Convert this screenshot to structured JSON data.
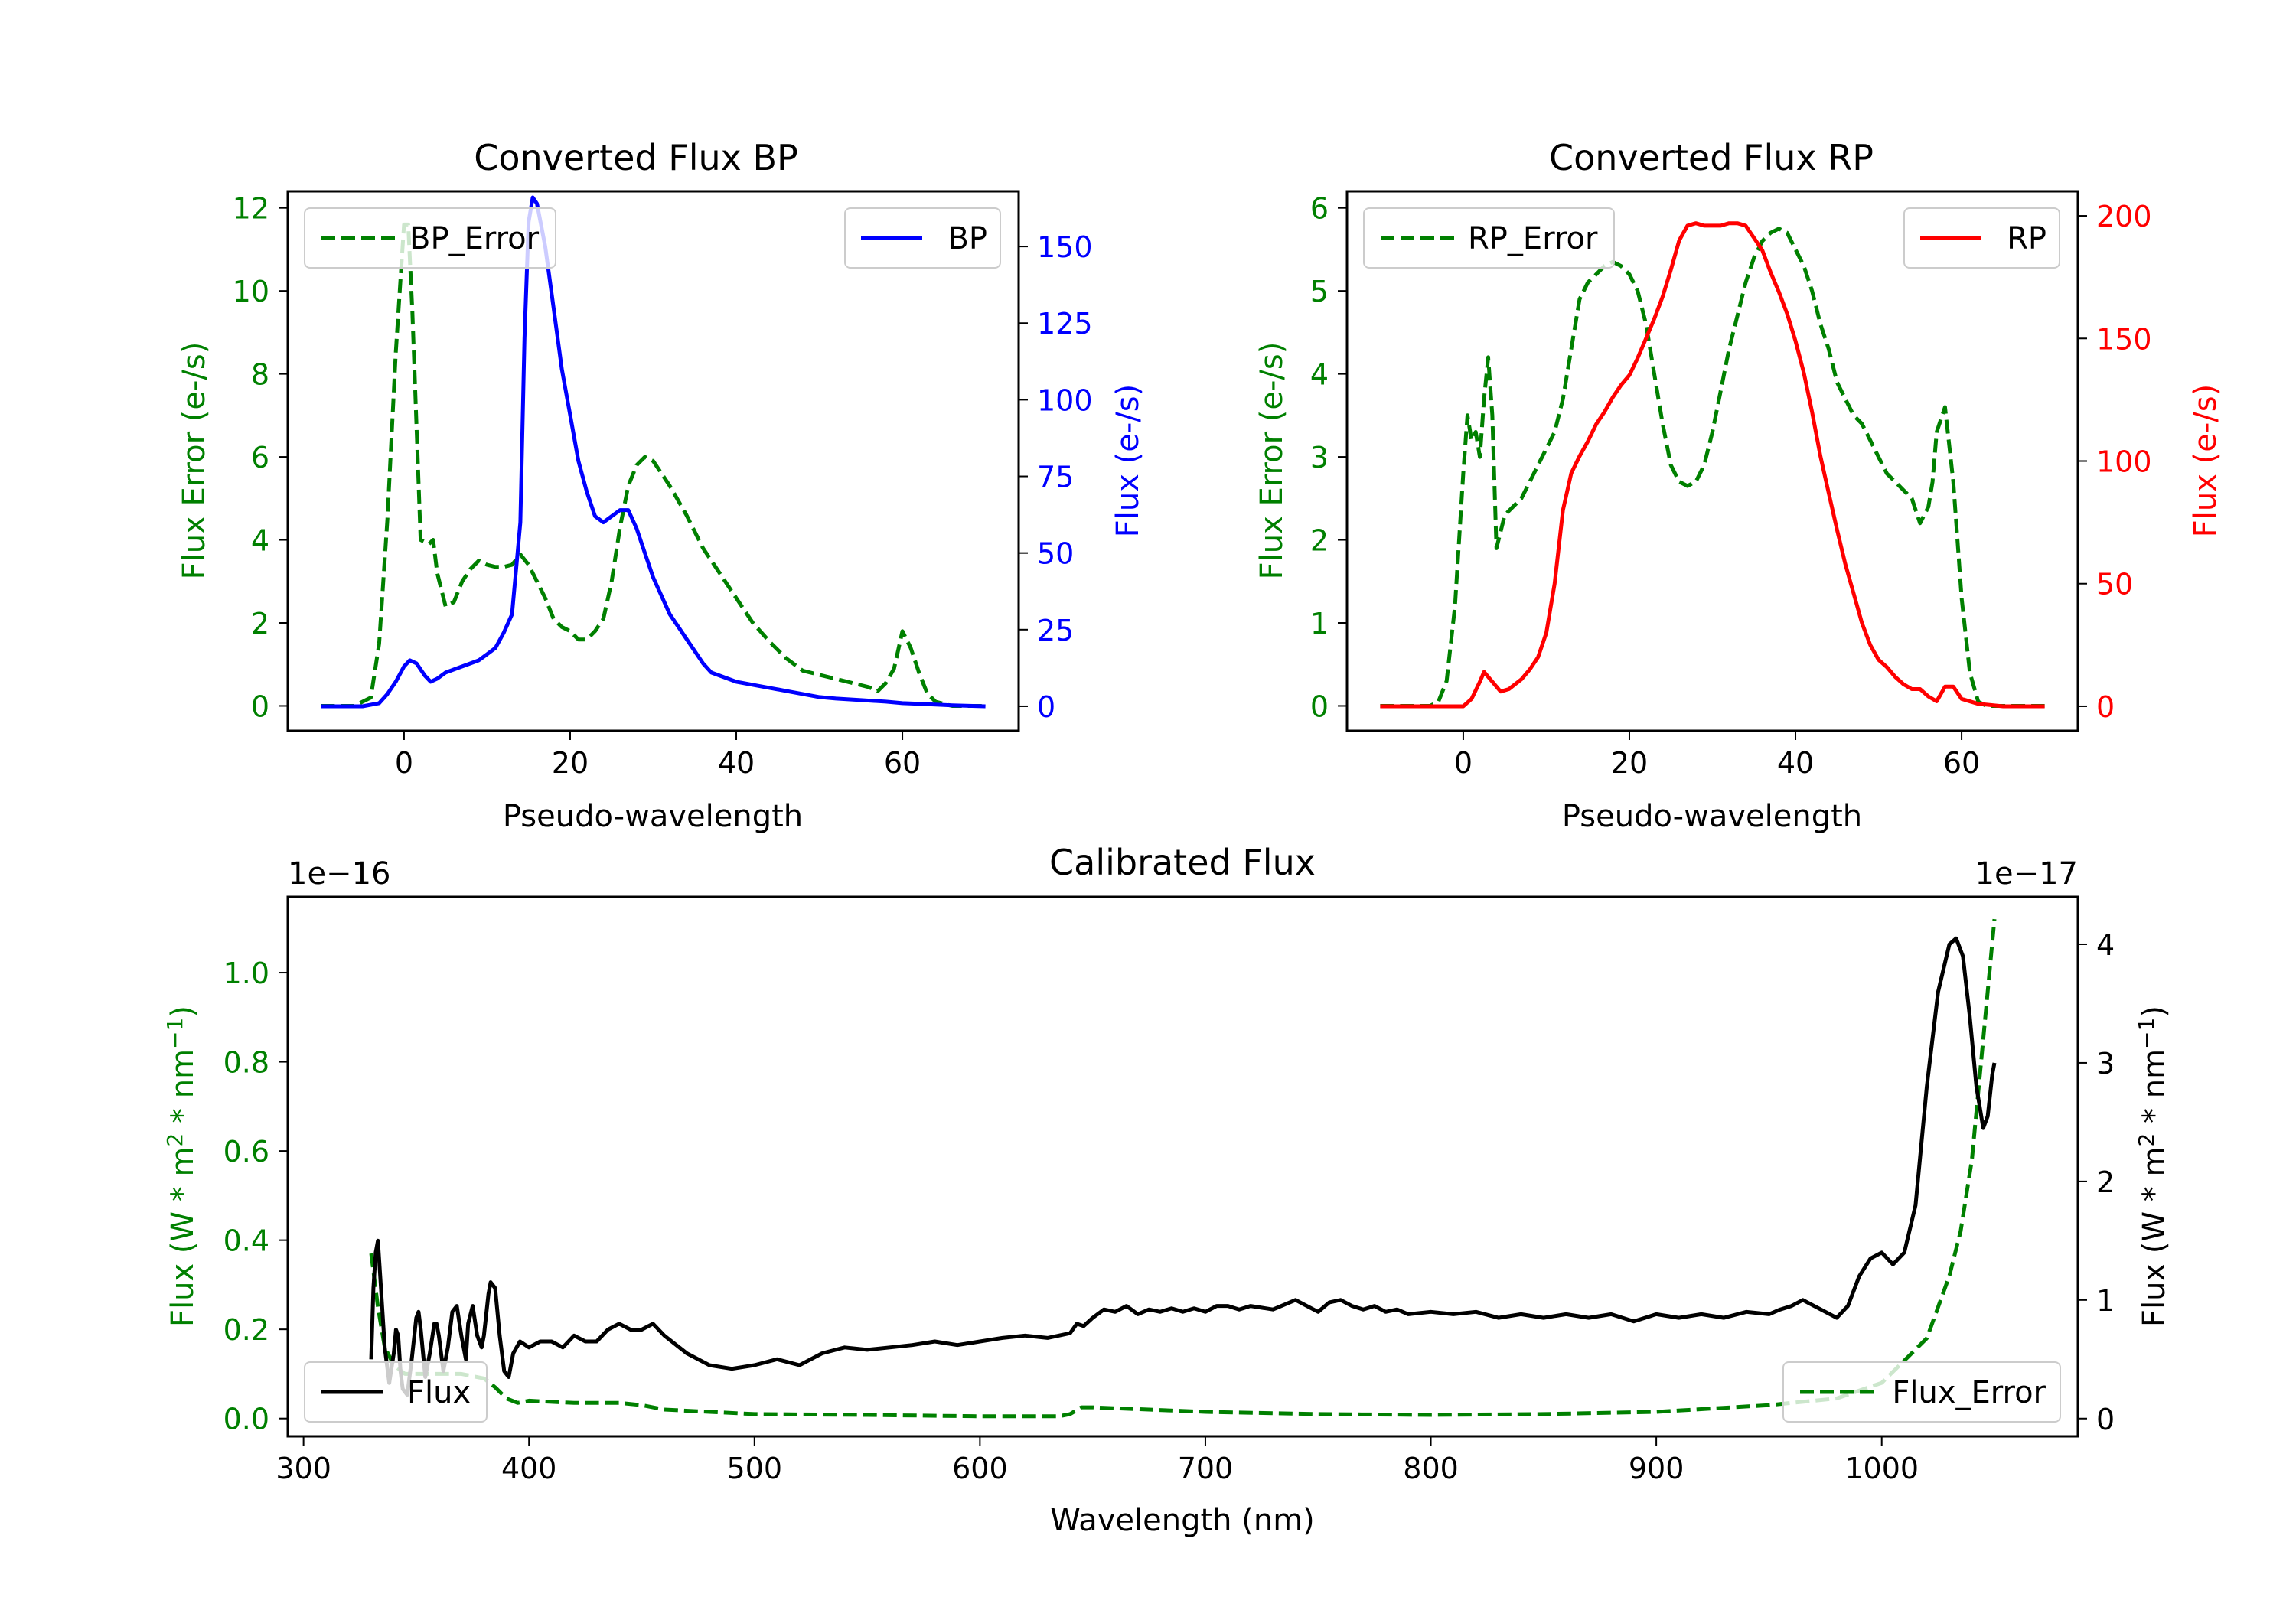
{
  "chart_data": [
    {
      "type": "line",
      "title": "Converted Flux BP",
      "xlabel": "Pseudo-wavelength",
      "xlim": [
        -14,
        74
      ],
      "x_ticks": [
        0,
        20,
        40,
        60
      ],
      "left_axis": {
        "label": "Flux Error (e-/s)",
        "color": "#008000",
        "ylim": [
          -0.6,
          12.4
        ],
        "ticks": [
          0,
          2,
          4,
          6,
          8,
          10,
          12
        ]
      },
      "right_axis": {
        "label": "Flux (e-/s)",
        "color": "#0000ff",
        "ylim": [
          -8,
          168
        ],
        "ticks": [
          0,
          25,
          50,
          75,
          100,
          125,
          150
        ]
      },
      "legend_left": {
        "position": "upper left",
        "label": "BP_Error"
      },
      "legend_right": {
        "position": "upper right",
        "label": "BP"
      },
      "series": [
        {
          "name": "BP_Error",
          "axis": "left",
          "color": "#008000",
          "style": "dashed",
          "x": [
            -10,
            -6,
            -4,
            -3,
            -2,
            -1,
            0,
            0.5,
            1,
            2,
            3,
            3.5,
            4,
            5,
            6,
            7,
            8,
            9,
            10,
            11,
            12,
            13,
            14,
            15,
            16,
            17,
            18,
            19,
            20,
            21,
            22,
            23,
            24,
            25,
            26,
            27,
            28,
            29,
            30,
            31,
            32,
            34,
            36,
            38,
            40,
            42,
            44,
            46,
            48,
            50,
            52,
            54,
            56,
            57,
            58,
            59,
            60,
            61,
            62,
            63,
            64,
            66,
            68,
            70
          ],
          "y": [
            0,
            0,
            0.2,
            1.5,
            4.5,
            8.5,
            11.6,
            11.6,
            9.5,
            4.0,
            3.9,
            4.0,
            3.2,
            2.4,
            2.5,
            3.0,
            3.3,
            3.5,
            3.4,
            3.35,
            3.35,
            3.4,
            3.65,
            3.4,
            3.0,
            2.6,
            2.1,
            1.9,
            1.8,
            1.6,
            1.6,
            1.8,
            2.1,
            3.0,
            4.3,
            5.3,
            5.8,
            6.0,
            5.9,
            5.6,
            5.3,
            4.6,
            3.8,
            3.2,
            2.6,
            2.0,
            1.55,
            1.15,
            0.85,
            0.75,
            0.65,
            0.55,
            0.45,
            0.35,
            0.55,
            0.9,
            1.8,
            1.4,
            0.8,
            0.3,
            0.1,
            0,
            0,
            0
          ]
        },
        {
          "name": "BP",
          "axis": "right",
          "color": "#0000ff",
          "style": "solid",
          "x": [
            -10,
            -5,
            -3,
            -2,
            -1,
            0,
            0.7,
            1.5,
            2.5,
            3.2,
            4,
            5,
            6,
            7,
            8,
            9,
            10,
            11,
            12,
            13,
            14,
            14.5,
            15,
            15.5,
            16,
            17,
            18,
            19,
            20,
            21,
            22,
            23,
            24,
            25,
            26,
            27,
            28,
            29,
            30,
            31,
            32,
            33,
            34,
            35,
            36,
            37,
            38,
            40,
            42,
            44,
            46,
            48,
            50,
            52,
            55,
            58,
            60,
            62,
            66,
            70
          ],
          "y": [
            0,
            0,
            1,
            4,
            8,
            13,
            15,
            14,
            10,
            8,
            9,
            11,
            12,
            13,
            14,
            15,
            17,
            19,
            24,
            30,
            60,
            120,
            158,
            166,
            164,
            150,
            130,
            110,
            95,
            80,
            70,
            62,
            60,
            62,
            64,
            64,
            58,
            50,
            42,
            36,
            30,
            26,
            22,
            18,
            14,
            11,
            10,
            8,
            7,
            6,
            5,
            4,
            3,
            2.5,
            2,
            1.5,
            1,
            0.8,
            0.3,
            0
          ]
        }
      ]
    },
    {
      "type": "line",
      "title": "Converted Flux RP",
      "xlabel": "Pseudo-wavelength",
      "xlim": [
        -14,
        74
      ],
      "x_ticks": [
        0,
        20,
        40,
        60
      ],
      "left_axis": {
        "label": "Flux Error (e-/s)",
        "color": "#008000",
        "ylim": [
          -0.3,
          6.2
        ],
        "ticks": [
          0,
          1,
          2,
          3,
          4,
          5,
          6
        ]
      },
      "right_axis": {
        "label": "Flux (e-/s)",
        "color": "#ff0000",
        "ylim": [
          -10,
          210
        ],
        "ticks": [
          0,
          50,
          100,
          150,
          200
        ]
      },
      "legend_left": {
        "position": "upper left",
        "label": "RP_Error"
      },
      "legend_right": {
        "position": "upper right",
        "label": "RP"
      },
      "series": [
        {
          "name": "RP_Error",
          "axis": "left",
          "color": "#008000",
          "style": "dashed",
          "x": [
            -10,
            -4,
            -3,
            -2,
            -1,
            0,
            0.5,
            1,
            1.5,
            2,
            2.5,
            3,
            3.5,
            4,
            5,
            6,
            7,
            8,
            9,
            10,
            11,
            12,
            13,
            14,
            15,
            16,
            17,
            18,
            19,
            20,
            21,
            22,
            23,
            24,
            25,
            26,
            27,
            28,
            29,
            30,
            31,
            32,
            33,
            34,
            35,
            36,
            37,
            38,
            39,
            40,
            41,
            42,
            43,
            44,
            45,
            46,
            47,
            48,
            49,
            50,
            51,
            52,
            53,
            54,
            55,
            56,
            56.5,
            57,
            58,
            59,
            60,
            61,
            62,
            63,
            63.5,
            64,
            65,
            66,
            70
          ],
          "y": [
            0,
            0,
            0.05,
            0.3,
            1.2,
            2.8,
            3.5,
            3.2,
            3.3,
            3.0,
            3.7,
            4.2,
            3.5,
            1.9,
            2.3,
            2.4,
            2.5,
            2.7,
            2.9,
            3.1,
            3.3,
            3.7,
            4.3,
            4.9,
            5.1,
            5.2,
            5.3,
            5.35,
            5.3,
            5.2,
            5.0,
            4.6,
            4.0,
            3.4,
            2.9,
            2.7,
            2.65,
            2.7,
            2.9,
            3.3,
            3.8,
            4.3,
            4.7,
            5.1,
            5.4,
            5.6,
            5.7,
            5.75,
            5.7,
            5.5,
            5.3,
            5.0,
            4.6,
            4.3,
            3.9,
            3.7,
            3.5,
            3.4,
            3.2,
            3.0,
            2.8,
            2.7,
            2.6,
            2.5,
            2.2,
            2.4,
            2.7,
            3.3,
            3.6,
            2.7,
            1.3,
            0.4,
            0.05,
            0,
            0,
            0,
            0,
            0,
            0
          ],
          "x_note": "sampled along dashed curve"
        },
        {
          "name": "RP",
          "axis": "right",
          "color": "#ff0000",
          "style": "solid",
          "x": [
            -10,
            -2,
            -1,
            0,
            1,
            2,
            2.5,
            3.5,
            4.5,
            5.5,
            7,
            8,
            9,
            10,
            11,
            12,
            13,
            14,
            15,
            16,
            17,
            18,
            19,
            20,
            21,
            22,
            23,
            24,
            25,
            26,
            27,
            28,
            29,
            30,
            31,
            32,
            33,
            34,
            35,
            36,
            37,
            38,
            39,
            40,
            41,
            42,
            43,
            44,
            45,
            46,
            47,
            48,
            49,
            50,
            51,
            52,
            53,
            54,
            55,
            56,
            57,
            58,
            59,
            60,
            62,
            65,
            70
          ],
          "y": [
            0,
            0,
            0,
            0,
            3,
            10,
            14,
            10,
            6,
            7,
            11,
            15,
            20,
            30,
            50,
            80,
            95,
            102,
            108,
            115,
            120,
            126,
            131,
            135,
            142,
            150,
            158,
            167,
            178,
            190,
            196,
            197,
            196,
            196,
            196,
            197,
            197,
            196,
            191,
            186,
            177,
            169,
            160,
            149,
            136,
            120,
            102,
            87,
            72,
            58,
            46,
            34,
            25,
            19,
            16,
            12,
            9,
            7,
            7,
            4,
            2,
            8,
            8,
            3,
            1,
            0,
            0
          ]
        }
      ]
    },
    {
      "type": "line",
      "title": "Calibrated Flux",
      "xlabel": "Wavelength (nm)",
      "xlim": [
        293,
        1087
      ],
      "x_ticks": [
        300,
        400,
        500,
        600,
        700,
        800,
        900,
        1000
      ],
      "left_axis": {
        "label": "Flux (W * m² * nm⁻¹)",
        "label_prefix": "Flux (W * m",
        "label_sup1": "2",
        "label_mid": " * nm",
        "label_sup2": "−1",
        "label_suffix": ")",
        "offset_text": "1e−16",
        "color": "#008000",
        "ylim": [
          -0.04,
          1.17
        ],
        "ticks": [
          0.0,
          0.2,
          0.4,
          0.6,
          0.8,
          1.0
        ],
        "tick_labels": [
          "0.0",
          "0.2",
          "0.4",
          "0.6",
          "0.8",
          "1.0"
        ]
      },
      "right_axis": {
        "label": "Flux (W * m² * nm⁻¹)",
        "label_prefix": "Flux (W * m",
        "label_sup1": "2",
        "label_mid": " * nm",
        "label_sup2": "−1",
        "label_suffix": ")",
        "offset_text": "1e−17",
        "color": "#000000",
        "ylim": [
          -0.15,
          4.4
        ],
        "ticks": [
          0,
          1,
          2,
          3,
          4
        ]
      },
      "legend_left": {
        "position": "lower left",
        "label": "Flux"
      },
      "legend_right": {
        "position": "lower right",
        "label": "Flux_Error"
      },
      "series": [
        {
          "name": "Flux_Error",
          "axis": "left",
          "color": "#008000",
          "style": "dashed",
          "x": [
            330,
            333,
            336,
            340,
            345,
            350,
            360,
            370,
            380,
            385,
            390,
            395,
            400,
            420,
            440,
            450,
            460,
            480,
            500,
            550,
            600,
            635,
            640,
            645,
            650,
            700,
            750,
            800,
            850,
            900,
            950,
            980,
            1000,
            1010,
            1020,
            1025,
            1030,
            1035,
            1040,
            1045,
            1050
          ],
          "y": [
            0.37,
            0.25,
            0.16,
            0.12,
            0.1,
            0.1,
            0.1,
            0.1,
            0.09,
            0.07,
            0.045,
            0.035,
            0.04,
            0.035,
            0.035,
            0.03,
            0.02,
            0.015,
            0.01,
            0.008,
            0.005,
            0.005,
            0.01,
            0.025,
            0.025,
            0.015,
            0.01,
            0.008,
            0.01,
            0.015,
            0.03,
            0.045,
            0.08,
            0.13,
            0.18,
            0.25,
            0.32,
            0.42,
            0.58,
            0.85,
            1.12
          ]
        },
        {
          "name": "Flux",
          "axis": "right",
          "color": "#000000",
          "style": "solid",
          "x": [
            330,
            331,
            332,
            333,
            334,
            336,
            338,
            340,
            341,
            342,
            343,
            344,
            346,
            348,
            350,
            351,
            352,
            354,
            356,
            358,
            359,
            360,
            362,
            364,
            366,
            368,
            370,
            372,
            373,
            375,
            377,
            379,
            380,
            382,
            383,
            385,
            387,
            389,
            391,
            393,
            396,
            400,
            405,
            410,
            415,
            420,
            425,
            430,
            435,
            440,
            445,
            450,
            455,
            460,
            470,
            480,
            490,
            500,
            510,
            520,
            530,
            540,
            550,
            560,
            570,
            580,
            590,
            600,
            610,
            620,
            630,
            635,
            640,
            643,
            646,
            650,
            655,
            660,
            665,
            670,
            675,
            680,
            685,
            690,
            695,
            700,
            705,
            710,
            715,
            720,
            730,
            740,
            745,
            750,
            755,
            760,
            765,
            770,
            775,
            780,
            785,
            790,
            800,
            810,
            820,
            830,
            840,
            850,
            860,
            870,
            880,
            890,
            900,
            910,
            920,
            930,
            940,
            950,
            955,
            960,
            965,
            970,
            975,
            980,
            985,
            990,
            995,
            1000,
            1005,
            1010,
            1015,
            1020,
            1025,
            1030,
            1033,
            1036,
            1039,
            1042,
            1045,
            1047,
            1049,
            1050
          ],
          "y": [
            0.5,
            1.1,
            1.4,
            1.5,
            1.2,
            0.6,
            0.3,
            0.55,
            0.75,
            0.7,
            0.4,
            0.25,
            0.2,
            0.5,
            0.85,
            0.9,
            0.75,
            0.35,
            0.55,
            0.8,
            0.8,
            0.7,
            0.4,
            0.6,
            0.9,
            0.95,
            0.7,
            0.5,
            0.8,
            0.95,
            0.7,
            0.6,
            0.7,
            1.05,
            1.15,
            1.1,
            0.7,
            0.4,
            0.35,
            0.55,
            0.65,
            0.6,
            0.65,
            0.65,
            0.6,
            0.7,
            0.65,
            0.65,
            0.75,
            0.8,
            0.75,
            0.75,
            0.8,
            0.7,
            0.55,
            0.45,
            0.42,
            0.45,
            0.5,
            0.45,
            0.55,
            0.6,
            0.58,
            0.6,
            0.62,
            0.65,
            0.62,
            0.65,
            0.68,
            0.7,
            0.68,
            0.7,
            0.72,
            0.8,
            0.78,
            0.85,
            0.92,
            0.9,
            0.95,
            0.88,
            0.92,
            0.9,
            0.93,
            0.9,
            0.93,
            0.9,
            0.95,
            0.95,
            0.92,
            0.95,
            0.92,
            1.0,
            0.95,
            0.9,
            0.98,
            1.0,
            0.95,
            0.92,
            0.95,
            0.9,
            0.92,
            0.88,
            0.9,
            0.88,
            0.9,
            0.85,
            0.88,
            0.85,
            0.88,
            0.85,
            0.88,
            0.82,
            0.88,
            0.85,
            0.88,
            0.85,
            0.9,
            0.88,
            0.92,
            0.95,
            1.0,
            0.95,
            0.9,
            0.85,
            0.95,
            1.2,
            1.35,
            1.4,
            1.3,
            1.4,
            1.8,
            2.8,
            3.6,
            4.0,
            4.05,
            3.9,
            3.4,
            2.8,
            2.45,
            2.55,
            2.9,
            3.0
          ]
        }
      ]
    }
  ]
}
